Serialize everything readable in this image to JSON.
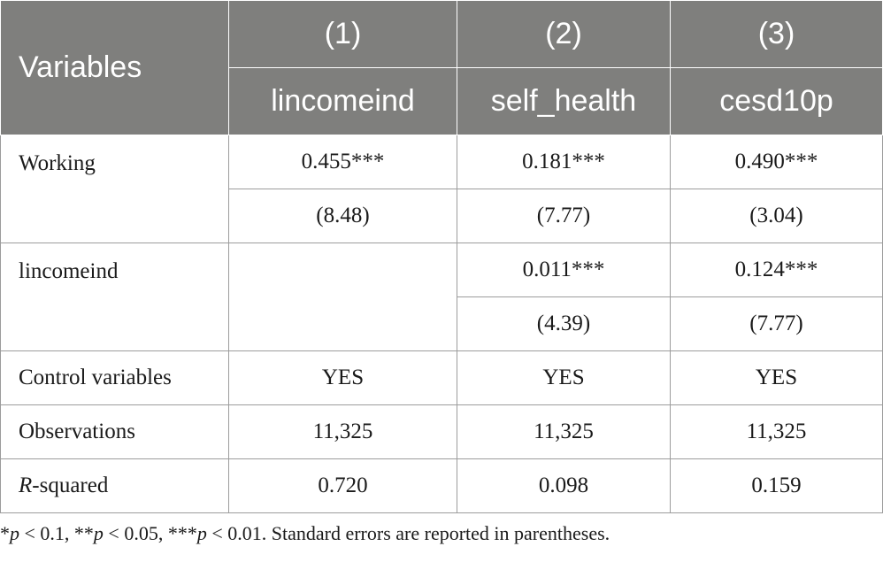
{
  "header": {
    "variables_label": "Variables",
    "col_numbers": [
      "(1)",
      "(2)",
      "(3)"
    ],
    "col_names": [
      "lincomeind",
      "self_health",
      "cesd10p"
    ]
  },
  "rows": {
    "working": {
      "label": "Working",
      "coef": [
        "0.455***",
        "0.181***",
        "0.490***"
      ],
      "t": [
        "(8.48)",
        "(7.77)",
        "(3.04)"
      ]
    },
    "lincomeind": {
      "label": "lincomeind",
      "coef": [
        "",
        "0.011***",
        "0.124***"
      ],
      "t": [
        "",
        "(4.39)",
        "(7.77)"
      ]
    },
    "controls": {
      "label": "Control variables",
      "values": [
        "YES",
        "YES",
        "YES"
      ]
    },
    "observations": {
      "label": "Observations",
      "values": [
        "11,325",
        "11,325",
        "11,325"
      ]
    },
    "rsquared": {
      "label_italic": "R",
      "label_rest": "-squared",
      "values": [
        "0.720",
        "0.098",
        "0.159"
      ]
    }
  },
  "footnote": {
    "p1": "p",
    "t1": " < 0.1, **",
    "p2": "p",
    "t2": " < 0.05, ***",
    "p3": "p",
    "t3": " < 0.01. Standard errors are reported in parentheses.",
    "lead": "*"
  }
}
